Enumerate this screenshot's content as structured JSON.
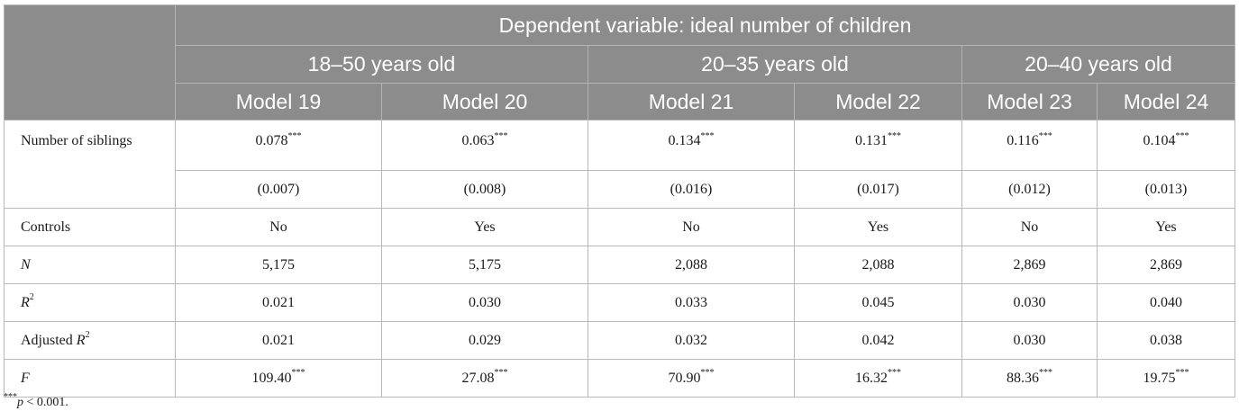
{
  "header": {
    "dependent_variable": "Dependent variable: ideal number of children",
    "groups": [
      "18–50 years old",
      "20–35 years old",
      "20–40 years old"
    ],
    "models": [
      "Model 19",
      "Model 20",
      "Model 21",
      "Model 22",
      "Model 23",
      "Model 24"
    ]
  },
  "rows": {
    "siblings": {
      "label": "Number of siblings",
      "coef": [
        "0.078",
        "0.063",
        "0.134",
        "0.131",
        "0.116",
        "0.104"
      ],
      "stars": "***",
      "se": [
        "(0.007)",
        "(0.008)",
        "(0.016)",
        "(0.017)",
        "(0.012)",
        "(0.013)"
      ]
    },
    "controls": {
      "label": "Controls",
      "values": [
        "No",
        "Yes",
        "No",
        "Yes",
        "No",
        "Yes"
      ]
    },
    "n": {
      "label": "N",
      "values": [
        "5,175",
        "5,175",
        "2,088",
        "2,088",
        "2,869",
        "2,869"
      ]
    },
    "r2": {
      "label": "R",
      "sup": "2",
      "values": [
        "0.021",
        "0.030",
        "0.033",
        "0.045",
        "0.030",
        "0.040"
      ]
    },
    "adj_r2": {
      "label": "Adjusted ",
      "label_it": "R",
      "sup": "2",
      "values": [
        "0.021",
        "0.029",
        "0.032",
        "0.042",
        "0.030",
        "0.038"
      ]
    },
    "f": {
      "label": "F",
      "values": [
        "109.40",
        "27.08",
        "70.90",
        "16.32",
        "88.36",
        "19.75"
      ],
      "stars": "***"
    }
  },
  "footnote": {
    "stars": "***",
    "p": "p",
    "rest": " < 0.001."
  }
}
